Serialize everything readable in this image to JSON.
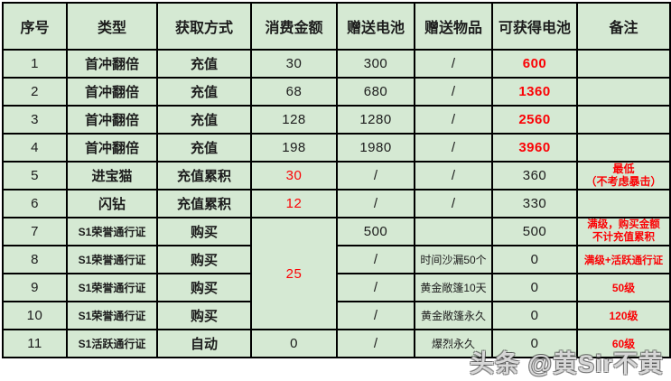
{
  "chart_data": {
    "type": "table",
    "columns": [
      "序号",
      "类型",
      "获取方式",
      "消费金额",
      "赠送电池",
      "赠送物品",
      "可获得电池",
      "备注"
    ],
    "rows": [
      [
        "1",
        "首冲翻倍",
        "充值",
        "30",
        "300",
        "/",
        "600",
        ""
      ],
      [
        "2",
        "首冲翻倍",
        "充值",
        "68",
        "680",
        "/",
        "1360",
        ""
      ],
      [
        "3",
        "首冲翻倍",
        "充值",
        "128",
        "1280",
        "/",
        "2560",
        ""
      ],
      [
        "4",
        "首冲翻倍",
        "充值",
        "198",
        "1980",
        "/",
        "3960",
        ""
      ],
      [
        "5",
        "进宝猫",
        "充值累积",
        "30",
        "/",
        "/",
        "360",
        "最低\n（不考虑暴击）"
      ],
      [
        "6",
        "闪钻",
        "充值累积",
        "12",
        "/",
        "/",
        "330",
        ""
      ],
      [
        "7",
        "S1荣誉通行证",
        "购买",
        "25",
        "500",
        "",
        "500",
        "满级，购买金额\n不计充值累积"
      ],
      [
        "8",
        "S1荣誉通行证",
        "购买",
        "",
        "/",
        "时间沙漏50个",
        "0",
        "满级+活跃通行证"
      ],
      [
        "9",
        "S1荣誉通行证",
        "购买",
        "",
        "/",
        "黄金敞篷10天",
        "0",
        "50级"
      ],
      [
        "10",
        "S1荣誉通行证",
        "购买",
        "",
        "/",
        "黄金敞篷永久",
        "0",
        "120级"
      ],
      [
        "11",
        "S1活跃通行证",
        "自动",
        "0",
        "/",
        "爆烈永久",
        "0",
        "60级"
      ]
    ],
    "merges": [
      {
        "column": "消费金额",
        "row_start": 7,
        "row_end": 10,
        "value": "25"
      }
    ],
    "colors": {
      "cell_background": "#d5e9d3",
      "grid": "#000000",
      "highlight_red": "#fb0205",
      "text": "#1c1c1c"
    },
    "title": "",
    "legend": "none",
    "grid_on": true
  },
  "watermark": {
    "text": "头条 @黄Sir不黄"
  }
}
